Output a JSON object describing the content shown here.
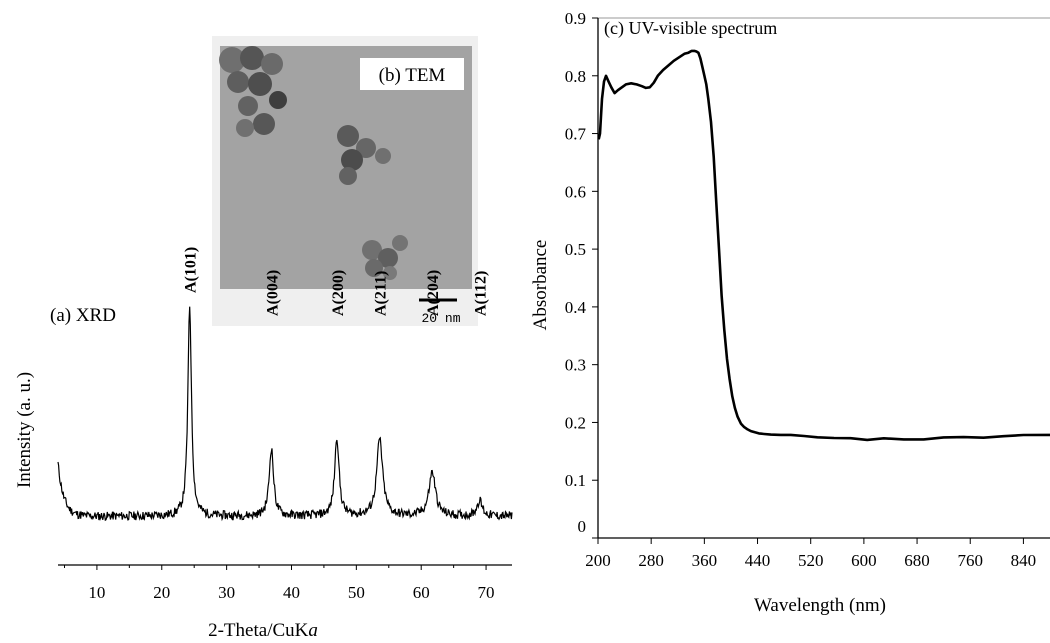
{
  "chart_data": [
    {
      "type": "line",
      "panel_label": "(a) XRD",
      "xlabel": "2-Theta/CuKα",
      "xlabel_main": "2-Theta/CuK",
      "xlabel_italic": "a",
      "ylabel": "Intensity (a. u.)",
      "xlim": [
        4,
        74
      ],
      "x_ticks": [
        10,
        20,
        30,
        40,
        50,
        60,
        70
      ],
      "y_ticks_shown": false,
      "baseline": 0.14,
      "noise": 0.04,
      "peaks": [
        {
          "label": "A(101)",
          "x": 24.3,
          "height": 0.96,
          "width": 0.33
        },
        {
          "label": "A(004)",
          "x": 36.9,
          "height": 0.31,
          "width": 0.4
        },
        {
          "label": "A(200)",
          "x": 47.0,
          "height": 0.36,
          "width": 0.4
        },
        {
          "label": "A(211)",
          "x": 53.6,
          "height": 0.35,
          "width": 0.55
        },
        {
          "label": "A(204)",
          "x": 61.7,
          "height": 0.2,
          "width": 0.6
        },
        {
          "label": "A(112)",
          "x": 69.0,
          "height": 0.07,
          "width": 0.5
        }
      ]
    },
    {
      "type": "line",
      "title": "(c) UV-visible spectrum",
      "xlabel": "Wavelength (nm)",
      "ylabel": "Absorbance",
      "xlim": [
        200,
        880
      ],
      "ylim": [
        0,
        0.9
      ],
      "x_ticks": [
        200,
        280,
        360,
        440,
        520,
        600,
        680,
        760,
        840
      ],
      "y_ticks": [
        "0",
        "0.1",
        "0.2",
        "0.3",
        "0.4",
        "0.5",
        "0.6",
        "0.7",
        "0.8",
        "0.9"
      ],
      "series": [
        {
          "x": [
            201,
            203,
            206,
            209,
            212,
            216,
            220,
            225,
            230,
            236,
            242,
            250,
            258,
            266,
            272,
            278,
            284,
            290,
            298,
            306,
            314,
            322,
            330,
            336,
            341,
            345,
            348,
            351,
            354,
            357,
            360,
            363,
            366,
            370,
            374,
            378,
            382,
            386,
            390,
            394,
            398,
            402,
            406,
            410,
            415,
            420,
            425,
            430,
            436,
            442,
            450,
            460,
            475,
            490,
            510,
            530,
            555,
            580,
            605,
            630,
            660,
            690,
            720,
            750,
            780,
            810,
            840,
            880
          ],
          "y": [
            0.69,
            0.7,
            0.76,
            0.79,
            0.8,
            0.79,
            0.78,
            0.77,
            0.775,
            0.78,
            0.785,
            0.787,
            0.785,
            0.782,
            0.779,
            0.78,
            0.788,
            0.8,
            0.81,
            0.818,
            0.826,
            0.832,
            0.838,
            0.84,
            0.843,
            0.843,
            0.842,
            0.84,
            0.83,
            0.815,
            0.8,
            0.785,
            0.76,
            0.72,
            0.66,
            0.58,
            0.5,
            0.42,
            0.36,
            0.31,
            0.275,
            0.245,
            0.225,
            0.21,
            0.198,
            0.192,
            0.188,
            0.185,
            0.183,
            0.181,
            0.18,
            0.179,
            0.178,
            0.177,
            0.176,
            0.175,
            0.173,
            0.172,
            0.171,
            0.171,
            0.171,
            0.172,
            0.173,
            0.174,
            0.175,
            0.176,
            0.177,
            0.178
          ]
        }
      ]
    }
  ],
  "inset": {
    "label": "(b) TEM",
    "scale_bar_label": "20 nm"
  }
}
